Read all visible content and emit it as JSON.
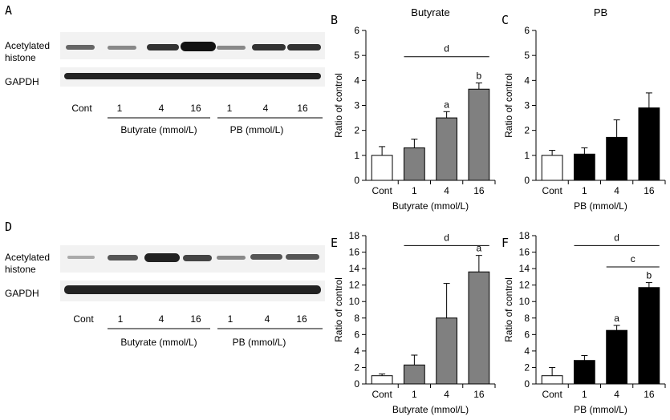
{
  "panels": {
    "A": {
      "letter": "A",
      "row_labels": [
        "Acetylated",
        "histone",
        "GAPDH"
      ],
      "lanes": [
        "Cont",
        "1",
        "4",
        "16",
        "1",
        "4",
        "16"
      ],
      "groups": [
        "Butyrate (mmol/L)",
        "PB (mmol/L)"
      ]
    },
    "D": {
      "letter": "D",
      "row_labels": [
        "Acetylated",
        "histone",
        "GAPDH"
      ],
      "lanes": [
        "Cont",
        "1",
        "4",
        "16",
        "1",
        "4",
        "16"
      ],
      "groups": [
        "Butyrate (mmol/L)",
        "PB (mmol/L)"
      ]
    }
  },
  "chart_data": [
    {
      "panel": "B",
      "type": "bar",
      "title": "Butyrate",
      "xlabel": "Butyrate (mmol/L)",
      "ylabel": "Ratio of control",
      "categories": [
        "Cont",
        "1",
        "4",
        "16"
      ],
      "values": [
        1.0,
        1.3,
        2.5,
        3.65
      ],
      "errors": [
        0.35,
        0.35,
        0.25,
        0.25
      ],
      "bar_colors": [
        "#ffffff",
        "#808080",
        "#808080",
        "#808080"
      ],
      "ylim": [
        0,
        6
      ],
      "yticks": [
        0,
        1,
        2,
        3,
        4,
        5,
        6
      ],
      "bar_annotations": [
        null,
        null,
        "a",
        "b"
      ],
      "brackets": [
        {
          "from": 1,
          "to": 3,
          "label": "d",
          "y": 4.95
        }
      ]
    },
    {
      "panel": "C",
      "type": "bar",
      "title": "PB",
      "xlabel": "PB (mmol/L)",
      "ylabel": "Ratio of control",
      "categories": [
        "Cont",
        "1",
        "4",
        "16"
      ],
      "values": [
        1.0,
        1.05,
        1.72,
        2.9
      ],
      "errors": [
        0.2,
        0.25,
        0.7,
        0.6
      ],
      "bar_colors": [
        "#ffffff",
        "#000000",
        "#000000",
        "#000000"
      ],
      "ylim": [
        0,
        6
      ],
      "yticks": [
        0,
        1,
        2,
        3,
        4,
        5,
        6
      ],
      "bar_annotations": [
        null,
        null,
        null,
        null
      ],
      "brackets": []
    },
    {
      "panel": "E",
      "type": "bar",
      "title": "",
      "xlabel": "Butyrate (mmol/L)",
      "ylabel": "Ratio of control",
      "categories": [
        "Cont",
        "1",
        "4",
        "16"
      ],
      "values": [
        1.0,
        2.3,
        8.0,
        13.6
      ],
      "errors": [
        0.2,
        1.2,
        4.2,
        2.0
      ],
      "bar_colors": [
        "#ffffff",
        "#808080",
        "#808080",
        "#808080"
      ],
      "ylim": [
        0,
        18
      ],
      "yticks": [
        0,
        2,
        4,
        6,
        8,
        10,
        12,
        14,
        16,
        18
      ],
      "bar_annotations": [
        null,
        null,
        null,
        "a"
      ],
      "brackets": [
        {
          "from": 1,
          "to": 3,
          "label": "d",
          "y": 16.8
        }
      ]
    },
    {
      "panel": "F",
      "type": "bar",
      "title": "",
      "xlabel": "PB (mmol/L)",
      "ylabel": "Ratio of control",
      "categories": [
        "Cont",
        "1",
        "4",
        "16"
      ],
      "values": [
        1.0,
        2.85,
        6.5,
        11.7
      ],
      "errors": [
        1.0,
        0.6,
        0.6,
        0.6
      ],
      "bar_colors": [
        "#ffffff",
        "#000000",
        "#000000",
        "#000000"
      ],
      "ylim": [
        0,
        18
      ],
      "yticks": [
        0,
        2,
        4,
        6,
        8,
        10,
        12,
        14,
        16,
        18
      ],
      "bar_annotations": [
        null,
        null,
        "a",
        "b"
      ],
      "brackets": [
        {
          "from": 1,
          "to": 3,
          "label": "d",
          "y": 16.8
        },
        {
          "from": 2,
          "to": 3,
          "label": "c",
          "y": 14.2
        }
      ]
    }
  ]
}
